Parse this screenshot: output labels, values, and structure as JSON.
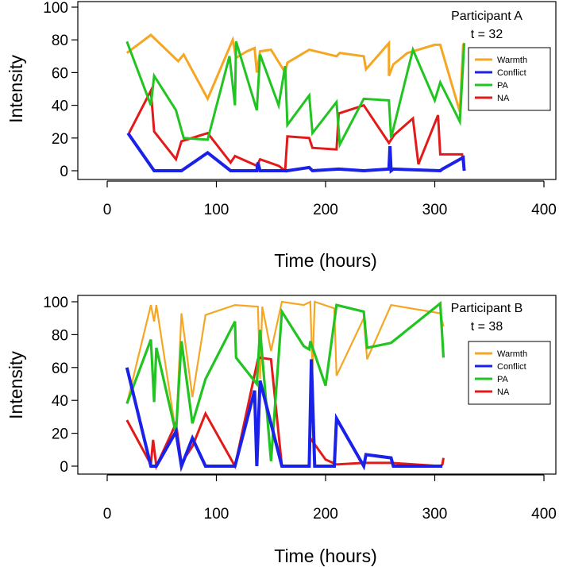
{
  "colors": {
    "warmth": "#F5A623",
    "conflict": "#1A21E8",
    "pa": "#22C422",
    "na": "#E21A1A"
  },
  "chart_data": [
    {
      "type": "line",
      "title_lines": [
        "Participant A",
        "t = 32"
      ],
      "xlabel": "Time (hours)",
      "ylabel": "Intensity",
      "xlim": [
        0,
        400
      ],
      "ylim": [
        0,
        100
      ],
      "xticks": [
        0,
        100,
        200,
        300,
        400
      ],
      "yticks": [
        0,
        20,
        40,
        60,
        80,
        100
      ],
      "legend_position": "top-right",
      "series": [
        {
          "key": "warmth",
          "name": "Warmth",
          "x": [
            18,
            40,
            65,
            70,
            92,
            115,
            118,
            128,
            135,
            137,
            140,
            150,
            163,
            165,
            185,
            210,
            213,
            235,
            237,
            258,
            258,
            262,
            275,
            300,
            305,
            323,
            326,
            327
          ],
          "y": [
            72,
            83,
            67,
            71,
            44,
            80,
            69,
            73,
            75,
            60,
            73,
            74,
            60,
            66,
            74,
            70,
            72,
            70,
            62,
            78,
            58,
            65,
            72,
            77,
            77,
            36,
            77,
            78
          ]
        },
        {
          "key": "conflict",
          "name": "Conflict",
          "x": [
            19,
            43,
            50,
            68,
            92,
            113,
            118,
            137,
            138,
            140,
            165,
            185,
            188,
            212,
            235,
            258,
            259,
            260,
            262,
            305,
            307,
            323,
            326,
            327
          ],
          "y": [
            23,
            0,
            0,
            0,
            11,
            0,
            0,
            0,
            5,
            0,
            0,
            2,
            0,
            1,
            0,
            1,
            15,
            0,
            1,
            0,
            1,
            7,
            8,
            0
          ],
          "line_width": 4
        },
        {
          "key": "pa",
          "name": "PA",
          "x": [
            18,
            40,
            43,
            63,
            70,
            92,
            112,
            117,
            118,
            137,
            140,
            157,
            163,
            165,
            185,
            188,
            210,
            213,
            235,
            258,
            260,
            280,
            300,
            305,
            323,
            327
          ],
          "y": [
            79,
            40,
            58,
            37,
            20,
            19,
            70,
            40,
            79,
            37,
            71,
            40,
            64,
            28,
            46,
            23,
            42,
            16,
            44,
            43,
            20,
            74,
            43,
            54,
            30,
            78
          ]
        },
        {
          "key": "na",
          "name": "NA",
          "x": [
            20,
            40,
            43,
            63,
            68,
            92,
            113,
            117,
            137,
            140,
            157,
            163,
            165,
            185,
            188,
            210,
            212,
            235,
            258,
            263,
            280,
            285,
            303,
            305,
            325,
            327
          ],
          "y": [
            23,
            49,
            24,
            7,
            18,
            23,
            5,
            9,
            3,
            7,
            3,
            0,
            21,
            20,
            14,
            13,
            35,
            40,
            17,
            22,
            32,
            4,
            34,
            10,
            10,
            0
          ]
        }
      ]
    },
    {
      "type": "line",
      "title_lines": [
        "Participant B",
        "t = 38"
      ],
      "xlabel": "Time (hours)",
      "ylabel": "Intensity",
      "xlim": [
        0,
        400
      ],
      "ylim": [
        0,
        100
      ],
      "xticks": [
        0,
        100,
        200,
        300,
        400
      ],
      "yticks": [
        0,
        20,
        40,
        60,
        80,
        100
      ],
      "legend_position": "top-right",
      "series": [
        {
          "key": "warmth",
          "name": "Warmth",
          "x": [
            18,
            40,
            43,
            45,
            63,
            68,
            78,
            90,
            117,
            138,
            140,
            142,
            150,
            160,
            180,
            186,
            188,
            190,
            208,
            210,
            235,
            238,
            260,
            305,
            308
          ],
          "y": [
            38,
            98,
            88,
            98,
            20,
            93,
            42,
            92,
            98,
            97,
            53,
            97,
            70,
            100,
            98,
            100,
            58,
            100,
            96,
            55,
            90,
            65,
            98,
            93,
            85
          ],
          "line_width": 2.2
        },
        {
          "key": "conflict",
          "name": "Conflict",
          "x": [
            18,
            40,
            45,
            63,
            68,
            78,
            90,
            117,
            135,
            137,
            140,
            160,
            185,
            187,
            190,
            208,
            210,
            235,
            237,
            260,
            262,
            305,
            307
          ],
          "y": [
            60,
            0,
            0,
            21,
            0,
            17,
            0,
            0,
            46,
            0,
            52,
            0,
            0,
            65,
            0,
            0,
            29,
            0,
            7,
            5,
            0,
            0,
            0
          ],
          "line_width": 4
        },
        {
          "key": "pa",
          "name": "PA",
          "x": [
            18,
            40,
            43,
            45,
            63,
            68,
            78,
            90,
            117,
            118,
            137,
            140,
            150,
            160,
            180,
            185,
            186,
            200,
            210,
            235,
            238,
            260,
            305,
            308
          ],
          "y": [
            38,
            77,
            39,
            72,
            20,
            76,
            26,
            53,
            88,
            66,
            50,
            83,
            3,
            94,
            73,
            71,
            76,
            49,
            98,
            94,
            72,
            75,
            99,
            66
          ],
          "line_width": 3.2
        },
        {
          "key": "na",
          "name": "NA",
          "x": [
            18,
            40,
            42,
            45,
            63,
            68,
            78,
            90,
            117,
            138,
            140,
            150,
            160,
            185,
            186,
            200,
            210,
            235,
            260,
            305,
            307,
            308
          ],
          "y": [
            28,
            1,
            16,
            0,
            26,
            2,
            12,
            32,
            0,
            65,
            66,
            65,
            0,
            0,
            17,
            4,
            1,
            2,
            2,
            0,
            1,
            5
          ]
        }
      ]
    }
  ]
}
